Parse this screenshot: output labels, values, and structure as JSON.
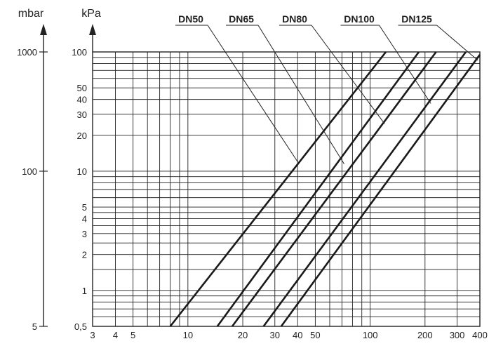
{
  "chart_data": {
    "type": "line",
    "scale": "log-log",
    "grid": true,
    "y_left_unit": "mbar",
    "y_right_unit": "kPa",
    "y_left_ticks": [
      "1000",
      "100",
      "5"
    ],
    "y_ticks": [
      "100",
      "50",
      "40",
      "30",
      "20",
      "10",
      "5",
      "4",
      "3",
      "2",
      "1",
      "0,5"
    ],
    "x_ticks": [
      "3",
      "4",
      "5",
      "10",
      "20",
      "30",
      "40",
      "50",
      "100",
      "200",
      "300",
      "400"
    ],
    "ylim_kpa": [
      0.5,
      100
    ],
    "xlim": [
      3,
      400
    ],
    "series": [
      {
        "name": "DN50",
        "x": [
          8.0,
          122
        ],
        "y": [
          0.5,
          100
        ],
        "leader_to": [
          40,
          12
        ]
      },
      {
        "name": "DN65",
        "x": [
          14.5,
          185
        ],
        "y": [
          0.5,
          100
        ],
        "leader_to": [
          72,
          11.5
        ]
      },
      {
        "name": "DN80",
        "x": [
          17.5,
          230
        ],
        "y": [
          0.5,
          100
        ],
        "leader_to": [
          120,
          25
        ]
      },
      {
        "name": "DN100",
        "x": [
          26.0,
          335
        ],
        "y": [
          0.5,
          100
        ],
        "leader_to": [
          215,
          37
        ]
      },
      {
        "name": "DN125",
        "x": [
          32.5,
          410
        ],
        "y": [
          0.5,
          100
        ],
        "leader_to": [
          390,
          85
        ]
      }
    ]
  }
}
